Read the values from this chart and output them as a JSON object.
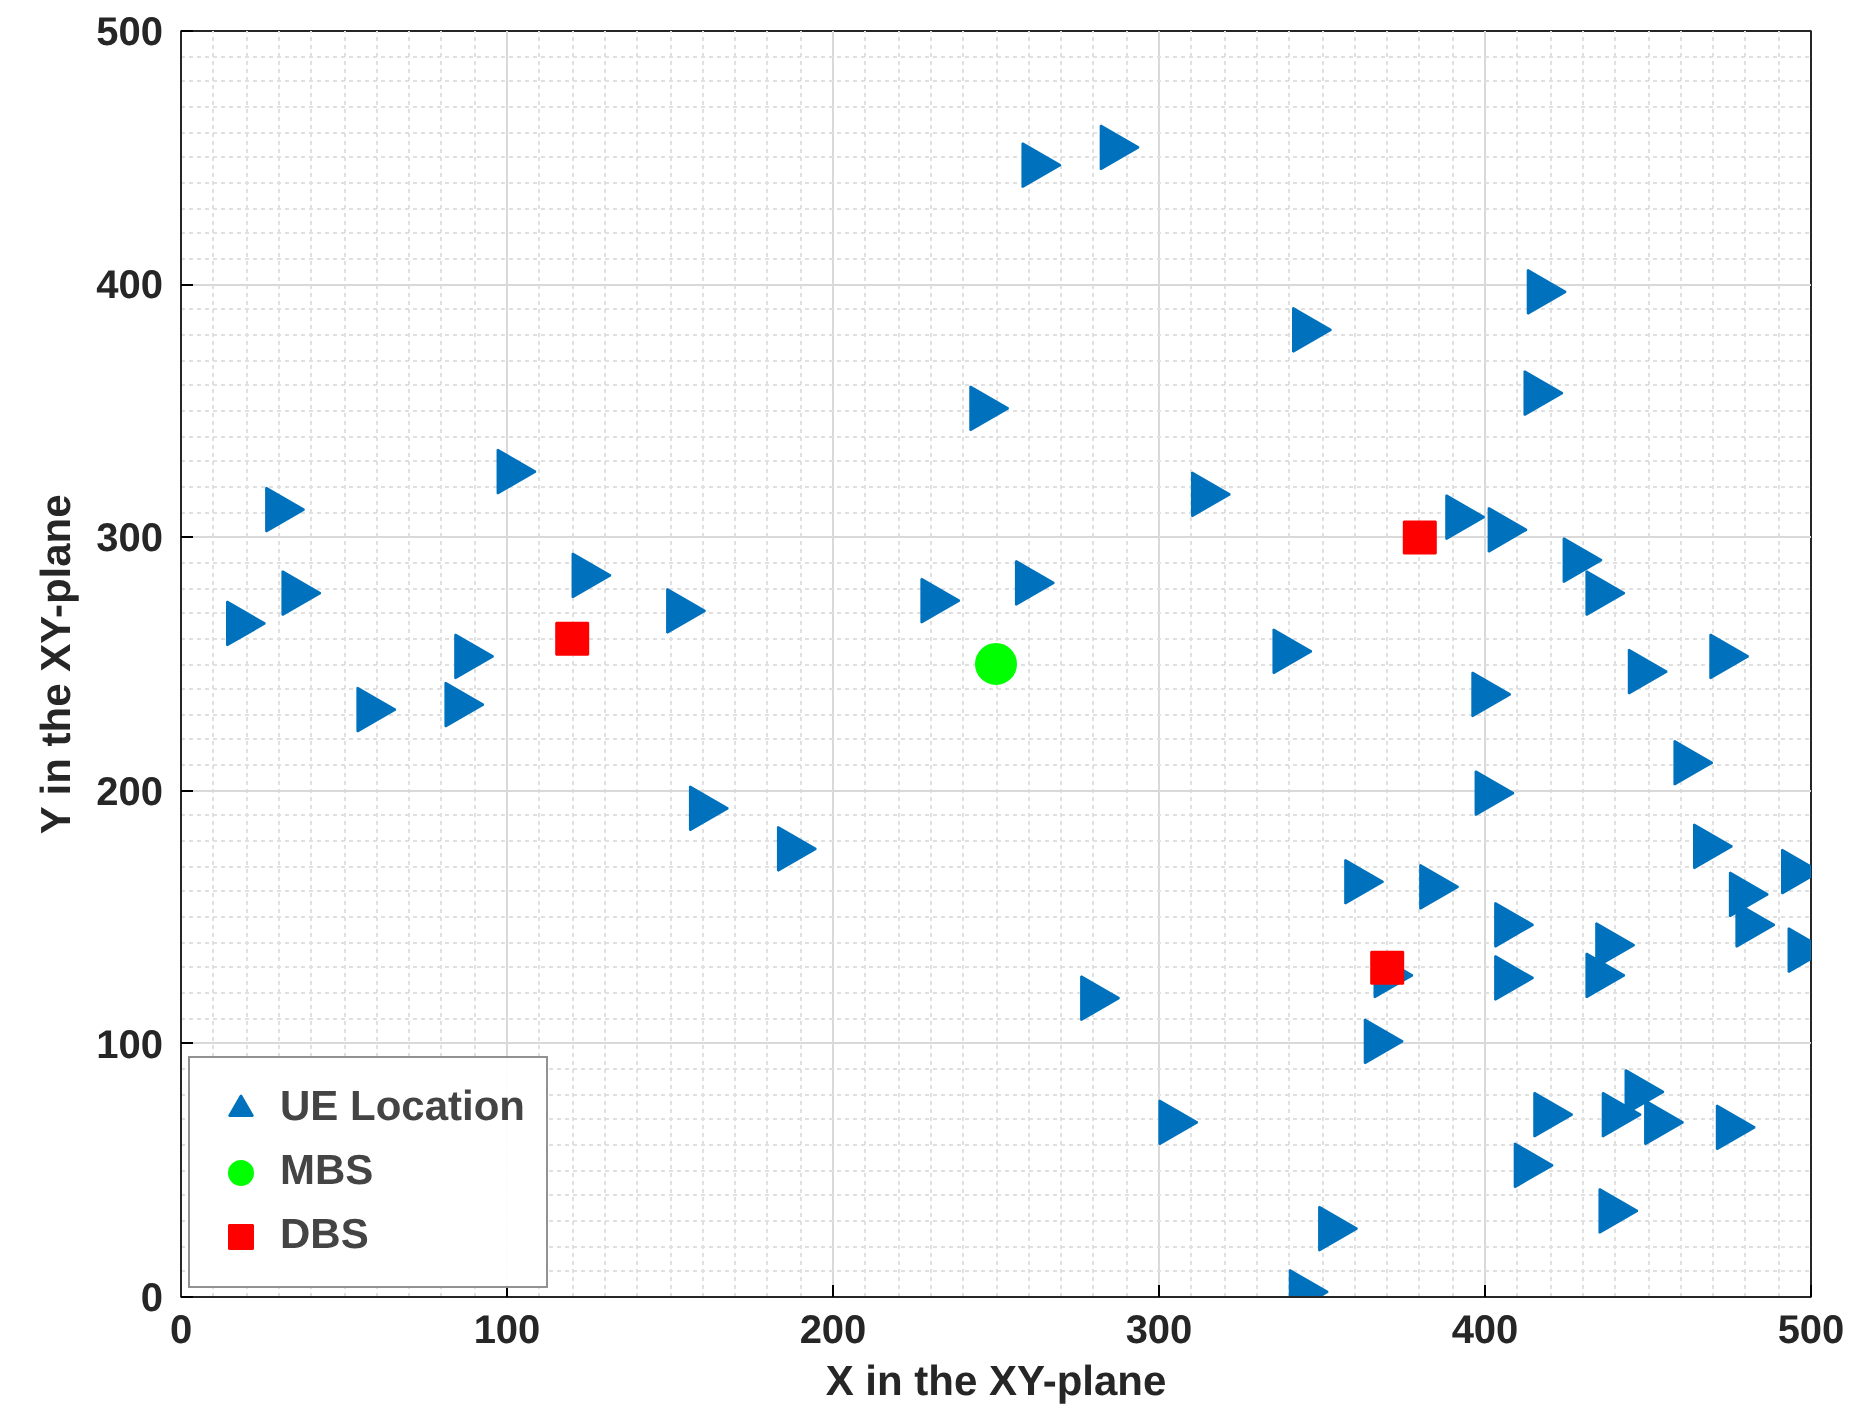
{
  "chart_data": {
    "type": "scatter",
    "xlabel": "X in the XY-plane",
    "ylabel": "Y in the XY-plane",
    "xlim": [
      0,
      500
    ],
    "ylim": [
      0,
      500
    ],
    "xticks": [
      0,
      100,
      200,
      300,
      400,
      500
    ],
    "yticks": [
      0,
      100,
      200,
      300,
      400,
      500
    ],
    "grid": true,
    "legend": "bottom left",
    "series": [
      {
        "name": "UE Location",
        "color": "#0072bd",
        "marker": "triangle",
        "x": [
          18,
          30,
          35,
          58,
          85,
          88,
          101,
          124,
          153,
          160,
          187,
          231,
          246,
          262,
          286,
          260,
          280,
          304,
          314,
          339,
          345,
          353,
          344,
          417,
          416,
          392,
          405,
          428,
          435,
          448,
          473,
          400,
          462,
          401,
          468,
          495,
          361,
          384,
          479,
          481,
          407,
          438,
          497,
          435,
          407,
          370,
          367,
          447,
          440,
          453,
          475,
          419,
          413,
          439
        ],
        "values": [
          266,
          311,
          278,
          232,
          234,
          253,
          326,
          285,
          271,
          193,
          177,
          275,
          351,
          447,
          454,
          282,
          118,
          69,
          317,
          255,
          382,
          27,
          2,
          397,
          357,
          308,
          303,
          291,
          278,
          247,
          253,
          238,
          211,
          199,
          178,
          168,
          164,
          162,
          159,
          147,
          147,
          139,
          137,
          127,
          126,
          127,
          101,
          81,
          72,
          69,
          67,
          72,
          52,
          34
        ]
      },
      {
        "name": "MBS",
        "color": "#00ff00",
        "marker": "circle",
        "x": [
          250
        ],
        "values": [
          250
        ]
      },
      {
        "name": "DBS",
        "color": "#ff0000",
        "marker": "square",
        "x": [
          120,
          380,
          370
        ],
        "values": [
          260,
          300,
          130
        ]
      }
    ]
  }
}
